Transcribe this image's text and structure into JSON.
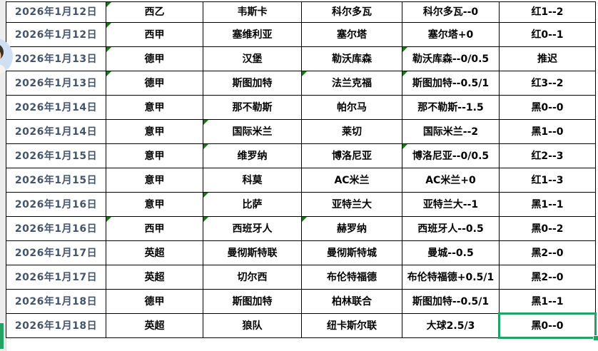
{
  "colors": {
    "selection_green": "#21A366",
    "triangle_green": "#107C10",
    "date_text": "#44546A",
    "grid_border": "#000000",
    "gutter_bg": "#ededed",
    "avatar_bg": "#cfe0f4"
  },
  "avatar": {
    "icon": "person-avatar"
  },
  "table": {
    "column_keys": [
      "date",
      "league",
      "home",
      "away",
      "handicap",
      "result"
    ],
    "rows": [
      {
        "date": "2026年1月12日",
        "league": "西乙",
        "home": "韦斯卡",
        "away": "科尔多瓦",
        "handicap": "科尔多瓦--0",
        "result": "红1--2",
        "error_markers": [
          "league"
        ]
      },
      {
        "date": "2026年1月12日",
        "league": "西甲",
        "home": "塞维利亚",
        "away": "塞尔塔",
        "handicap": "塞尔塔+0",
        "result": "红0--1",
        "error_markers": [
          "league"
        ]
      },
      {
        "date": "2026年1月13日",
        "league": "德甲",
        "home": "汉堡",
        "away": "勒沃库森",
        "handicap": "勒沃库森--0/0.5",
        "result": "推迟",
        "error_markers": [
          "league",
          "handicap"
        ]
      },
      {
        "date": "2026年1月13日",
        "league": "德甲",
        "home": "斯图加特",
        "away": "法兰克福",
        "handicap": "斯图加特--0.5/1",
        "result": "红3--2",
        "error_markers": [
          "league",
          "away",
          "handicap"
        ]
      },
      {
        "date": "2026年1月14日",
        "league": "意甲",
        "home": "那不勒斯",
        "away": "帕尔马",
        "handicap": "那不勒斯--1.5",
        "result": "黑0--0",
        "error_markers": []
      },
      {
        "date": "2026年1月14日",
        "league": "意甲",
        "home": "国际米兰",
        "away": "莱切",
        "handicap": "国际米兰--2",
        "result": "黑1--0",
        "error_markers": [
          "home"
        ]
      },
      {
        "date": "2026年1月15日",
        "league": "意甲",
        "home": "维罗纳",
        "away": "博洛尼亚",
        "handicap": "博洛尼亚--0/0.5",
        "result": "红2--3",
        "error_markers": [
          "home",
          "handicap"
        ]
      },
      {
        "date": "2026年1月15日",
        "league": "意甲",
        "home": "科莫",
        "away": "AC米兰",
        "handicap": "AC米兰+0",
        "result": "红1--3",
        "error_markers": []
      },
      {
        "date": "2026年1月16日",
        "league": "意甲",
        "home": "比萨",
        "away": "亚特兰大",
        "handicap": "亚特兰大--1",
        "result": "黑1--1",
        "error_markers": [
          "home"
        ]
      },
      {
        "date": "2026年1月16日",
        "league": "西甲",
        "home": "西班牙人",
        "away": "赫罗纳",
        "handicap": "西班牙人--0.5",
        "result": "黑0--2",
        "error_markers": [
          "league",
          "home",
          "away"
        ]
      },
      {
        "date": "2026年1月17日",
        "league": "英超",
        "home": "曼彻斯特联",
        "away": "曼彻斯特城",
        "handicap": "曼城--0.5",
        "result": "黑2--0",
        "error_markers": []
      },
      {
        "date": "2026年1月17日",
        "league": "英超",
        "home": "切尔西",
        "away": "布伦特福德",
        "handicap": "布伦特福德+0.5/1",
        "result": "黑2--0",
        "error_markers": []
      },
      {
        "date": "2026年1月18日",
        "league": "德甲",
        "home": "斯图加特",
        "away": "柏林联合",
        "handicap": "斯图加特--0.5/1",
        "result": "黑1--1",
        "error_markers": []
      },
      {
        "date": "2026年1月18日",
        "league": "英超",
        "home": "狼队",
        "away": "纽卡斯尔联",
        "handicap": "大球2.5/3",
        "result": "黑0--0",
        "error_markers": []
      }
    ]
  },
  "selection": {
    "row_index": 13,
    "column_key": "result"
  }
}
